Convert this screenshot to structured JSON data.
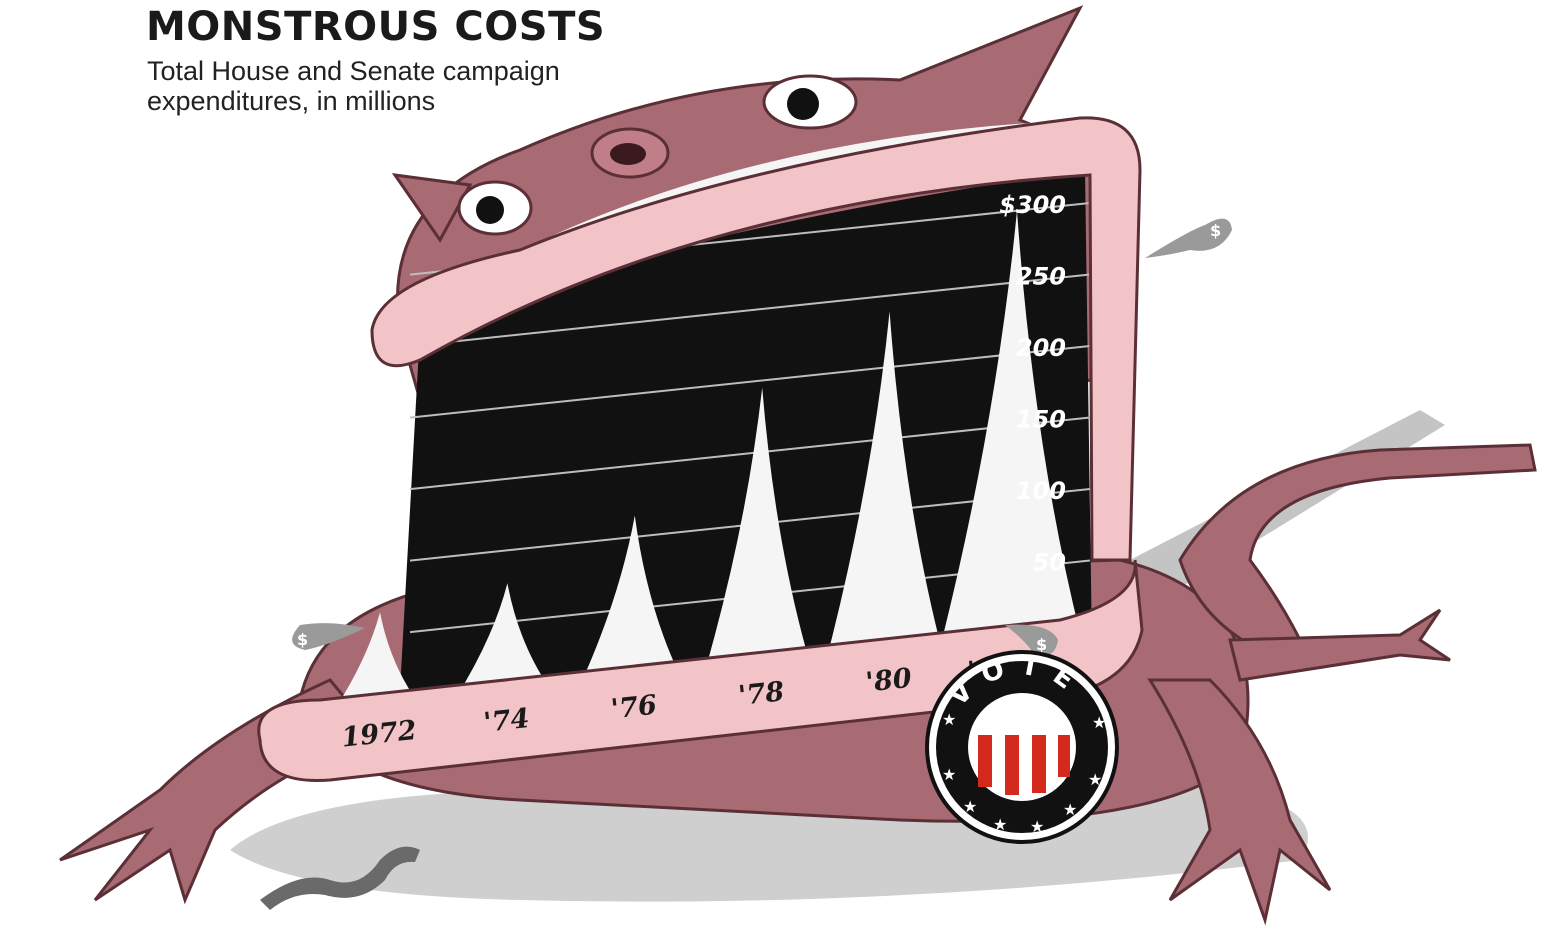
{
  "header": {
    "title": "MONSTROUS COSTS",
    "subtitle": "Total House and Senate campaign expenditures, in millions"
  },
  "colors": {
    "monster_body": "#a86a73",
    "lips": "#f2c4c8",
    "mouth_interior": "#111111",
    "spikes": "#f5f5f5",
    "shadow": "#c8c8c8",
    "badge_red": "#d42a1e"
  },
  "badge": {
    "text": "VOTE"
  },
  "icons": [
    "dollar-droplet-icon",
    "vote-badge-icon",
    "star-icon"
  ],
  "chart_data": {
    "type": "area",
    "categories": [
      "1972",
      "'74",
      "'76",
      "'78",
      "'80",
      "'82 est."
    ],
    "values": [
      66,
      77,
      115,
      195,
      239,
      300
    ],
    "ylabel": "",
    "xlabel": "",
    "ylim": [
      0,
      300
    ],
    "yticks": [
      50,
      100,
      150,
      200,
      250,
      300
    ],
    "ytick_labels": [
      "50",
      "100",
      "150",
      "200",
      "250",
      "$300"
    ],
    "grid": true,
    "legend": "none"
  }
}
